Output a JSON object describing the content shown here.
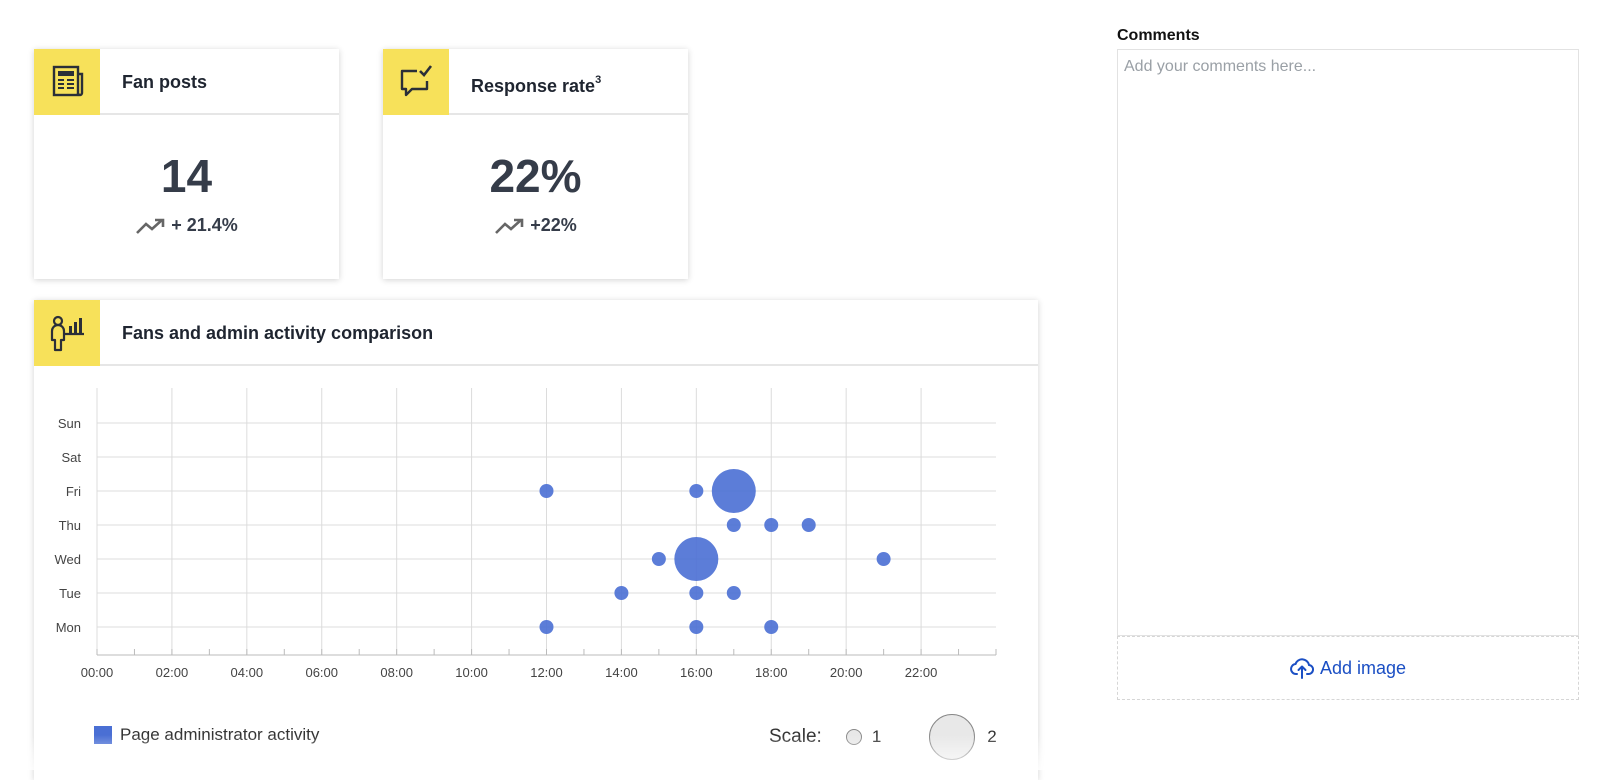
{
  "kpis": {
    "fan_posts": {
      "title": "Fan posts",
      "value": "14",
      "change": "+ 21.4%",
      "icon": "newspaper-icon"
    },
    "response_rate": {
      "title": "Response rate",
      "title_sup": "3",
      "value": "22%",
      "change": "+22%",
      "icon": "chat-check-icon"
    }
  },
  "activity": {
    "title": "Fans and admin activity comparison",
    "icon": "person-chart-icon",
    "legend_label": "Page administrator activity",
    "scale_label": "Scale:",
    "scale_small_value": "1",
    "scale_large_value": "2"
  },
  "comments": {
    "label": "Comments",
    "placeholder": "Add your comments here...",
    "add_image_label": "Add image"
  },
  "colors": {
    "accent_yellow": "#f7e15a",
    "bubble_blue": "#4a6fd4",
    "link_blue": "#1b4fc4"
  },
  "chart_data": {
    "type": "scatter",
    "x_ticks": [
      "00:00",
      "02:00",
      "04:00",
      "06:00",
      "08:00",
      "10:00",
      "12:00",
      "14:00",
      "16:00",
      "18:00",
      "20:00",
      "22:00"
    ],
    "y_categories": [
      "Mon",
      "Tue",
      "Wed",
      "Thu",
      "Fri",
      "Sat",
      "Sun"
    ],
    "xlim": [
      0,
      24
    ],
    "grid": true,
    "legend_placement": "bottom-left",
    "series": [
      {
        "name": "Page administrator activity",
        "points": [
          {
            "hour": 12,
            "day": "Fri",
            "size": 1
          },
          {
            "hour": 16,
            "day": "Fri",
            "size": 1
          },
          {
            "hour": 17,
            "day": "Fri",
            "size": 2
          },
          {
            "hour": 17,
            "day": "Thu",
            "size": 1
          },
          {
            "hour": 18,
            "day": "Thu",
            "size": 1
          },
          {
            "hour": 19,
            "day": "Thu",
            "size": 1
          },
          {
            "hour": 15,
            "day": "Wed",
            "size": 1
          },
          {
            "hour": 16,
            "day": "Wed",
            "size": 2
          },
          {
            "hour": 21,
            "day": "Wed",
            "size": 1
          },
          {
            "hour": 14,
            "day": "Tue",
            "size": 1
          },
          {
            "hour": 16,
            "day": "Tue",
            "size": 1
          },
          {
            "hour": 17,
            "day": "Tue",
            "size": 1
          },
          {
            "hour": 12,
            "day": "Mon",
            "size": 1
          },
          {
            "hour": 16,
            "day": "Mon",
            "size": 1
          },
          {
            "hour": 18,
            "day": "Mon",
            "size": 1
          }
        ]
      }
    ]
  }
}
